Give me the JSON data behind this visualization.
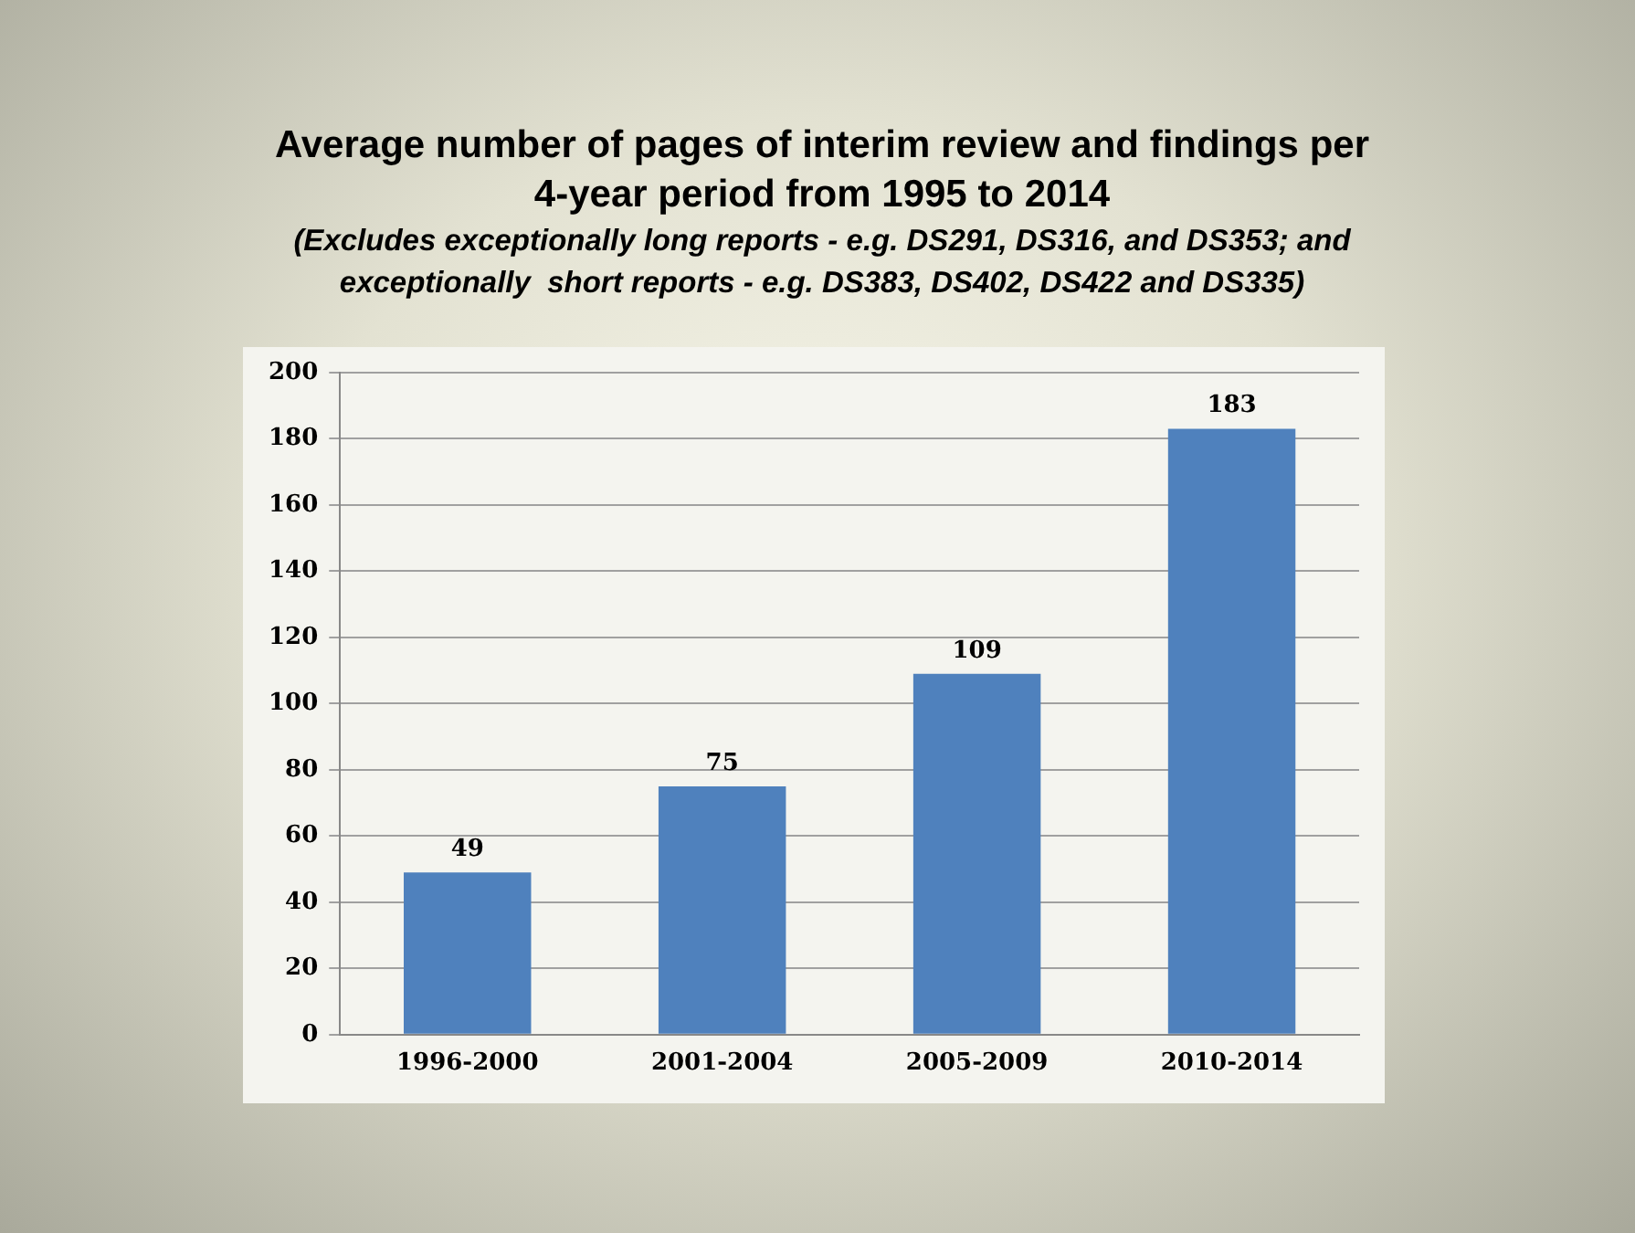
{
  "chart_data": {
    "type": "bar",
    "title": "Average number of pages of interim review and findings per 4-year period from 1995 to 2014",
    "subtitle": "(Excludes exceptionally long reports - e.g. DS291, DS316, and DS353; and exceptionally  short reports - e.g. DS383, DS402, DS422 and DS335)",
    "categories": [
      "1996-2000",
      "2001-2004",
      "2005-2009",
      "2010-2014"
    ],
    "values": [
      49,
      75,
      109,
      183
    ],
    "color": "#4f81bd",
    "ylim": [
      0,
      200
    ],
    "yticks": [
      0,
      20,
      40,
      60,
      80,
      100,
      120,
      140,
      160,
      180,
      200
    ],
    "grid": "y",
    "data_labels": true,
    "legend": false
  }
}
